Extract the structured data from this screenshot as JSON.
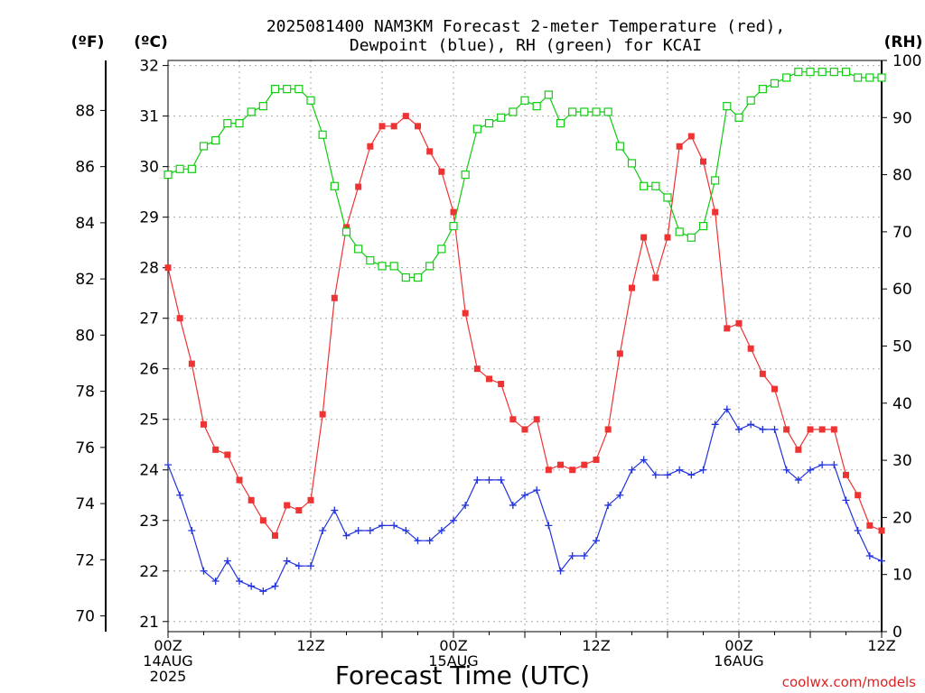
{
  "chart_data": {
    "type": "line",
    "title_line1": "2025081400 NAM3KM Forecast 2-meter Temperature (red),",
    "title_line2": "Dewpoint (blue), RH (green) for KCAI",
    "xlabel": "Forecast Time (UTC)",
    "unit_f": "(ºF)",
    "unit_c": "(ºC)",
    "unit_rh": "(RH)",
    "credit": "coolwx.com/models",
    "ylim_c": [
      20.8,
      32.1
    ],
    "ylim_rh": [
      0,
      100
    ],
    "yticks_c": [
      "21",
      "22",
      "23",
      "24",
      "25",
      "26",
      "27",
      "28",
      "29",
      "30",
      "31",
      "32"
    ],
    "yticks_f": [
      "70",
      "72",
      "74",
      "76",
      "78",
      "80",
      "82",
      "84",
      "86",
      "88"
    ],
    "yticks_rh": [
      "0",
      "10",
      "20",
      "30",
      "40",
      "50",
      "60",
      "70",
      "80",
      "90",
      "100"
    ],
    "x_range_hours": [
      0,
      60
    ],
    "xticks": [
      {
        "hour": 0,
        "lines": [
          "00Z",
          "14AUG",
          "2025"
        ]
      },
      {
        "hour": 12,
        "lines": [
          "12Z"
        ]
      },
      {
        "hour": 24,
        "lines": [
          "00Z",
          "15AUG"
        ]
      },
      {
        "hour": 36,
        "lines": [
          "12Z"
        ]
      },
      {
        "hour": 48,
        "lines": [
          "00Z",
          "16AUG"
        ]
      },
      {
        "hour": 60,
        "lines": [
          "12Z"
        ]
      }
    ],
    "colors": {
      "temperature": "#ee3333",
      "dewpoint": "#2233dd",
      "rh": "#11cc11",
      "axis": "#000000",
      "grid": "#aaaaaa"
    },
    "series": [
      {
        "key": "temperature",
        "axis": "c",
        "marker": "filled-square",
        "x": [
          0,
          1,
          2,
          3,
          4,
          5,
          6,
          7,
          8,
          9,
          10,
          11,
          12,
          13,
          14,
          15,
          16,
          17,
          18,
          19,
          20,
          21,
          22,
          23,
          24,
          25,
          26,
          27,
          28,
          29,
          30,
          31,
          32,
          33,
          34,
          35,
          36,
          37,
          38,
          39,
          40,
          41,
          42,
          43,
          44,
          45,
          46,
          47,
          48,
          49,
          50,
          51,
          52,
          53,
          54,
          55,
          56,
          57,
          58,
          59,
          60
        ],
        "values": [
          28.0,
          27.0,
          26.1,
          24.9,
          24.4,
          24.3,
          23.8,
          23.4,
          23.0,
          22.7,
          23.3,
          23.2,
          23.4,
          25.1,
          27.4,
          28.8,
          29.6,
          30.4,
          30.8,
          30.8,
          31.0,
          30.8,
          30.3,
          29.9,
          29.1,
          27.1,
          26.0,
          25.8,
          25.7,
          25.0,
          24.8,
          25.0,
          24.0,
          24.1,
          24.0,
          24.1,
          24.2,
          24.8,
          26.3,
          27.6,
          28.6,
          27.8,
          28.6,
          30.4,
          30.6,
          30.1,
          29.1,
          26.8,
          26.9,
          26.4,
          25.9,
          25.6,
          24.8,
          24.4,
          24.8,
          24.8,
          24.8,
          23.9,
          23.5,
          22.9,
          22.8
        ]
      },
      {
        "key": "dewpoint",
        "axis": "c",
        "marker": "plus",
        "x": [
          0,
          1,
          2,
          3,
          4,
          5,
          6,
          7,
          8,
          9,
          10,
          11,
          12,
          13,
          14,
          15,
          16,
          17,
          18,
          19,
          20,
          21,
          22,
          23,
          24,
          25,
          26,
          27,
          28,
          29,
          30,
          31,
          32,
          33,
          34,
          35,
          36,
          37,
          38,
          39,
          40,
          41,
          42,
          43,
          44,
          45,
          46,
          47,
          48,
          49,
          50,
          51,
          52,
          53,
          54,
          55,
          56,
          57,
          58,
          59,
          60
        ],
        "values": [
          24.1,
          23.5,
          22.8,
          22.0,
          21.8,
          22.2,
          21.8,
          21.7,
          21.6,
          21.7,
          22.2,
          22.1,
          22.1,
          22.8,
          23.2,
          22.7,
          22.8,
          22.8,
          22.9,
          22.9,
          22.8,
          22.6,
          22.6,
          22.8,
          23.0,
          23.3,
          23.8,
          23.8,
          23.8,
          23.3,
          23.5,
          23.6,
          22.9,
          22.0,
          22.3,
          22.3,
          22.6,
          23.3,
          23.5,
          24.0,
          24.2,
          23.9,
          23.9,
          24.0,
          23.9,
          24.0,
          24.9,
          25.2,
          24.8,
          24.9,
          24.8,
          24.8,
          24.0,
          23.8,
          24.0,
          24.1,
          24.1,
          23.4,
          22.8,
          22.3,
          22.2
        ]
      },
      {
        "key": "rh",
        "axis": "rh",
        "marker": "open-square",
        "x": [
          0,
          1,
          2,
          3,
          4,
          5,
          6,
          7,
          8,
          9,
          10,
          11,
          12,
          13,
          14,
          15,
          16,
          17,
          18,
          19,
          20,
          21,
          22,
          23,
          24,
          25,
          26,
          27,
          28,
          29,
          30,
          31,
          32,
          33,
          34,
          35,
          36,
          37,
          38,
          39,
          40,
          41,
          42,
          43,
          44,
          45,
          46,
          47,
          48,
          49,
          50,
          51,
          52,
          53,
          54,
          55,
          56,
          57,
          58,
          59,
          60
        ],
        "values": [
          80,
          81,
          81,
          85,
          86,
          89,
          89,
          91,
          92,
          95,
          95,
          95,
          93,
          87,
          78,
          70,
          67,
          65,
          64,
          64,
          62,
          62,
          64,
          67,
          71,
          80,
          88,
          89,
          90,
          91,
          93,
          92,
          94,
          89,
          91,
          91,
          91,
          91,
          85,
          82,
          78,
          78,
          76,
          70,
          69,
          71,
          79,
          92,
          90,
          93,
          95,
          96,
          97,
          98,
          98,
          98,
          98,
          98,
          97,
          97,
          97
        ]
      }
    ]
  }
}
